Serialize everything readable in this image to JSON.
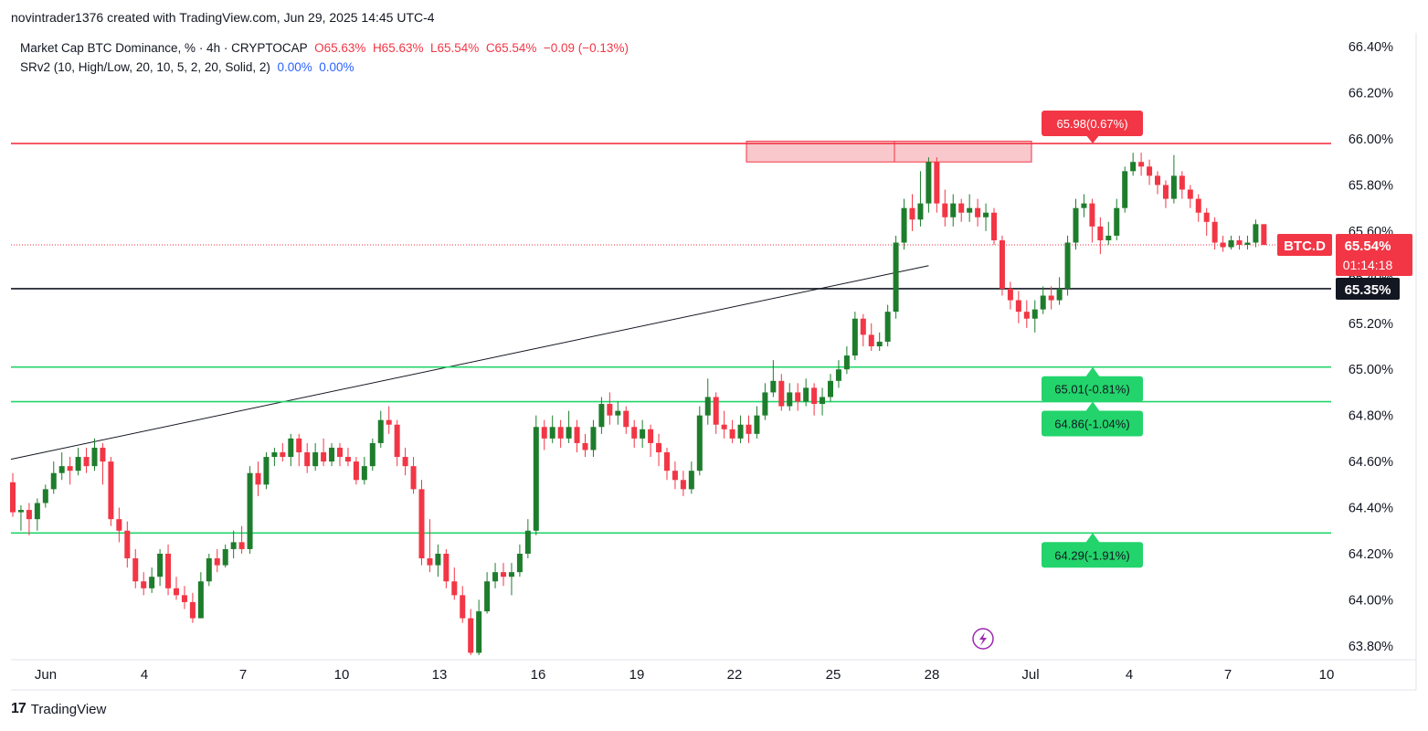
{
  "header": {
    "attribution": "novintrader1376 created with TradingView.com, Jun 29, 2025 14:45 UTC-4"
  },
  "legend": {
    "symbol": "Market Cap BTC Dominance, % · 4h · CRYPTOCAP",
    "open": "O65.63%",
    "high": "H65.63%",
    "low": "L65.54%",
    "close": "C65.54%",
    "change": "−0.09 (−0.13%)",
    "indicator": "SRv2 (10, High/Low, 20, 10, 5, 2, 20, Solid, 2)",
    "ind_val1": "0.00%",
    "ind_val2": "0.00%"
  },
  "footer": {
    "brand": "TradingView",
    "logo": "17"
  },
  "colors": {
    "up": "#089981",
    "down": "#f23645",
    "bull": "#1e7d2c",
    "bear": "#f23645",
    "support": "#22d46b",
    "resistance": "#f23645"
  },
  "chart_data": {
    "type": "candlestick",
    "symbol_tag": "BTC.D",
    "last_price": "65.54%",
    "countdown": "01:14:18",
    "crosshair_label": "65.35%",
    "ylim": [
      63.74,
      66.46
    ],
    "y_ticks": [
      "66.40%",
      "66.20%",
      "66.00%",
      "65.80%",
      "65.60%",
      "65.40%",
      "65.20%",
      "65.00%",
      "64.80%",
      "64.60%",
      "64.40%",
      "64.20%",
      "64.00%",
      "63.80%"
    ],
    "x_ticks": [
      "Jun",
      "4",
      "7",
      "10",
      "13",
      "16",
      "19",
      "22",
      "25",
      "28",
      "Jul",
      "4",
      "7",
      "10"
    ],
    "levels": [
      {
        "value": 65.98,
        "label": "65.98(0.67%)",
        "type": "resistance"
      },
      {
        "value": 65.01,
        "label": "65.01(-0.81%)",
        "type": "support"
      },
      {
        "value": 64.86,
        "label": "64.86(-1.04%)",
        "type": "support"
      },
      {
        "value": 64.29,
        "label": "64.29(-1.91%)",
        "type": "support"
      }
    ],
    "horizontal_line": 65.35,
    "resistance_zone": [
      65.9,
      65.99
    ],
    "trendline": [
      [
        0,
        64.61
      ],
      [
        112,
        65.45
      ]
    ],
    "candles": [
      [
        64.51,
        64.38,
        64.55,
        64.36
      ],
      [
        64.38,
        64.39,
        64.41,
        64.3
      ],
      [
        64.39,
        64.35,
        64.42,
        64.28
      ],
      [
        64.35,
        64.42,
        64.44,
        64.3
      ],
      [
        64.42,
        64.48,
        64.5,
        64.4
      ],
      [
        64.48,
        64.55,
        64.6,
        64.46
      ],
      [
        64.55,
        64.58,
        64.64,
        64.52
      ],
      [
        64.58,
        64.56,
        64.62,
        64.5
      ],
      [
        64.56,
        64.62,
        64.66,
        64.54
      ],
      [
        64.62,
        64.58,
        64.66,
        64.55
      ],
      [
        64.58,
        64.66,
        64.7,
        64.56
      ],
      [
        64.66,
        64.6,
        64.68,
        64.5
      ],
      [
        64.6,
        64.35,
        64.62,
        64.32
      ],
      [
        64.35,
        64.3,
        64.4,
        64.25
      ],
      [
        64.3,
        64.18,
        64.34,
        64.14
      ],
      [
        64.18,
        64.08,
        64.22,
        64.05
      ],
      [
        64.08,
        64.05,
        64.12,
        64.02
      ],
      [
        64.05,
        64.1,
        64.14,
        64.03
      ],
      [
        64.1,
        64.2,
        64.22,
        64.06
      ],
      [
        64.2,
        64.05,
        64.24,
        64.02
      ],
      [
        64.05,
        64.02,
        64.1,
        64.0
      ],
      [
        64.02,
        63.99,
        64.06,
        63.96
      ],
      [
        63.99,
        63.92,
        64.03,
        63.9
      ],
      [
        63.92,
        64.08,
        64.12,
        63.92
      ],
      [
        64.08,
        64.18,
        64.2,
        64.06
      ],
      [
        64.18,
        64.15,
        64.22,
        64.12
      ],
      [
        64.15,
        64.22,
        64.24,
        64.14
      ],
      [
        64.22,
        64.25,
        64.3,
        64.18
      ],
      [
        64.25,
        64.22,
        64.32,
        64.2
      ],
      [
        64.22,
        64.55,
        64.58,
        64.2
      ],
      [
        64.55,
        64.5,
        64.6,
        64.45
      ],
      [
        64.5,
        64.62,
        64.64,
        64.48
      ],
      [
        64.62,
        64.64,
        64.66,
        64.58
      ],
      [
        64.64,
        64.62,
        64.68,
        64.6
      ],
      [
        64.62,
        64.7,
        64.72,
        64.58
      ],
      [
        64.7,
        64.64,
        64.72,
        64.58
      ],
      [
        64.64,
        64.58,
        64.68,
        64.55
      ],
      [
        64.58,
        64.64,
        64.68,
        64.56
      ],
      [
        64.64,
        64.6,
        64.7,
        64.58
      ],
      [
        64.6,
        64.66,
        64.68,
        64.58
      ],
      [
        64.66,
        64.62,
        64.68,
        64.58
      ],
      [
        64.62,
        64.6,
        64.66,
        64.58
      ],
      [
        64.6,
        64.52,
        64.62,
        64.5
      ],
      [
        64.52,
        64.58,
        64.62,
        64.5
      ],
      [
        64.58,
        64.68,
        64.7,
        64.56
      ],
      [
        64.68,
        64.78,
        64.82,
        64.66
      ],
      [
        64.78,
        64.76,
        64.84,
        64.72
      ],
      [
        64.76,
        64.62,
        64.78,
        64.58
      ],
      [
        64.62,
        64.58,
        64.66,
        64.54
      ],
      [
        64.58,
        64.48,
        64.62,
        64.46
      ],
      [
        64.48,
        64.18,
        64.52,
        64.15
      ],
      [
        64.18,
        64.15,
        64.35,
        64.12
      ],
      [
        64.15,
        64.2,
        64.24,
        64.1
      ],
      [
        64.2,
        64.08,
        64.22,
        64.05
      ],
      [
        64.08,
        64.02,
        64.14,
        64.0
      ],
      [
        64.02,
        63.92,
        64.06,
        63.9
      ],
      [
        63.92,
        63.77,
        63.96,
        63.76
      ],
      [
        63.77,
        63.95,
        64.0,
        63.76
      ],
      [
        63.95,
        64.08,
        64.12,
        63.94
      ],
      [
        64.08,
        64.12,
        64.16,
        64.05
      ],
      [
        64.12,
        64.1,
        64.16,
        64.06
      ],
      [
        64.1,
        64.12,
        64.16,
        64.02
      ],
      [
        64.12,
        64.2,
        64.24,
        64.1
      ],
      [
        64.2,
        64.3,
        64.35,
        64.18
      ],
      [
        64.3,
        64.75,
        64.8,
        64.28
      ],
      [
        64.75,
        64.7,
        64.78,
        64.65
      ],
      [
        64.7,
        64.75,
        64.8,
        64.68
      ],
      [
        64.75,
        64.7,
        64.78,
        64.66
      ],
      [
        64.7,
        64.75,
        64.82,
        64.68
      ],
      [
        64.75,
        64.68,
        64.78,
        64.64
      ],
      [
        64.68,
        64.65,
        64.72,
        64.62
      ],
      [
        64.65,
        64.75,
        64.78,
        64.62
      ],
      [
        64.75,
        64.85,
        64.88,
        64.72
      ],
      [
        64.85,
        64.8,
        64.9,
        64.76
      ],
      [
        64.8,
        64.82,
        64.86,
        64.76
      ],
      [
        64.82,
        64.75,
        64.84,
        64.72
      ],
      [
        64.75,
        64.7,
        64.78,
        64.66
      ],
      [
        64.7,
        64.74,
        64.78,
        64.66
      ],
      [
        64.74,
        64.68,
        64.76,
        64.62
      ],
      [
        64.68,
        64.64,
        64.72,
        64.58
      ],
      [
        64.64,
        64.56,
        64.66,
        64.52
      ],
      [
        64.56,
        64.52,
        64.6,
        64.48
      ],
      [
        64.52,
        64.48,
        64.56,
        64.45
      ],
      [
        64.48,
        64.56,
        64.6,
        64.46
      ],
      [
        64.56,
        64.8,
        64.84,
        64.54
      ],
      [
        64.8,
        64.88,
        64.96,
        64.76
      ],
      [
        64.88,
        64.76,
        64.9,
        64.72
      ],
      [
        64.76,
        64.74,
        64.82,
        64.7
      ],
      [
        64.74,
        64.7,
        64.78,
        64.68
      ],
      [
        64.7,
        64.76,
        64.8,
        64.68
      ],
      [
        64.76,
        64.72,
        64.8,
        64.68
      ],
      [
        64.72,
        64.8,
        64.84,
        64.7
      ],
      [
        64.8,
        64.9,
        64.94,
        64.78
      ],
      [
        64.9,
        64.95,
        65.04,
        64.88
      ],
      [
        64.95,
        64.84,
        64.98,
        64.82
      ],
      [
        64.84,
        64.9,
        64.94,
        64.82
      ],
      [
        64.9,
        64.86,
        64.94,
        64.82
      ],
      [
        64.86,
        64.92,
        64.96,
        64.84
      ],
      [
        64.92,
        64.85,
        64.94,
        64.8
      ],
      [
        64.85,
        64.88,
        64.92,
        64.8
      ],
      [
        64.88,
        64.95,
        64.98,
        64.86
      ],
      [
        64.95,
        65.0,
        65.04,
        64.92
      ],
      [
        65.0,
        65.06,
        65.1,
        64.98
      ],
      [
        65.06,
        65.22,
        65.25,
        65.04
      ],
      [
        65.22,
        65.15,
        65.24,
        65.1
      ],
      [
        65.15,
        65.1,
        65.2,
        65.08
      ],
      [
        65.1,
        65.12,
        65.16,
        65.08
      ],
      [
        65.12,
        65.25,
        65.28,
        65.1
      ],
      [
        65.25,
        65.55,
        65.58,
        65.22
      ],
      [
        65.55,
        65.7,
        65.74,
        65.52
      ],
      [
        65.7,
        65.65,
        65.76,
        65.6
      ],
      [
        65.65,
        65.72,
        65.86,
        65.62
      ],
      [
        65.72,
        65.9,
        65.92,
        65.68
      ],
      [
        65.9,
        65.72,
        65.92,
        65.68
      ],
      [
        65.72,
        65.66,
        65.78,
        65.62
      ],
      [
        65.66,
        65.72,
        65.76,
        65.62
      ],
      [
        65.72,
        65.68,
        65.74,
        65.64
      ],
      [
        65.68,
        65.7,
        65.76,
        65.64
      ],
      [
        65.7,
        65.66,
        65.74,
        65.62
      ],
      [
        65.66,
        65.68,
        65.72,
        65.6
      ],
      [
        65.68,
        65.56,
        65.7,
        65.54
      ],
      [
        65.56,
        65.35,
        65.58,
        65.32
      ],
      [
        65.35,
        65.3,
        65.38,
        65.26
      ],
      [
        65.3,
        65.25,
        65.34,
        65.2
      ],
      [
        65.25,
        65.22,
        65.3,
        65.18
      ],
      [
        65.22,
        65.26,
        65.3,
        65.16
      ],
      [
        65.26,
        65.32,
        65.36,
        65.24
      ],
      [
        65.32,
        65.3,
        65.36,
        65.26
      ],
      [
        65.3,
        65.35,
        65.4,
        65.28
      ],
      [
        65.35,
        65.55,
        65.58,
        65.32
      ],
      [
        65.55,
        65.7,
        65.74,
        65.52
      ],
      [
        65.7,
        65.72,
        65.76,
        65.66
      ],
      [
        65.72,
        65.62,
        65.74,
        65.55
      ],
      [
        65.62,
        65.56,
        65.66,
        65.5
      ],
      [
        65.56,
        65.58,
        65.64,
        65.54
      ],
      [
        65.58,
        65.7,
        65.74,
        65.56
      ],
      [
        65.7,
        65.86,
        65.88,
        65.68
      ],
      [
        65.86,
        65.9,
        65.94,
        65.84
      ],
      [
        65.9,
        65.88,
        65.94,
        65.84
      ],
      [
        65.88,
        65.84,
        65.91,
        65.8
      ],
      [
        65.84,
        65.8,
        65.86,
        65.76
      ],
      [
        65.8,
        65.74,
        65.82,
        65.7
      ],
      [
        65.74,
        65.84,
        65.93,
        65.72
      ],
      [
        65.84,
        65.78,
        65.86,
        65.74
      ],
      [
        65.78,
        65.74,
        65.8,
        65.7
      ],
      [
        65.74,
        65.68,
        65.76,
        65.64
      ],
      [
        65.68,
        65.64,
        65.7,
        65.58
      ],
      [
        65.64,
        65.55,
        65.66,
        65.52
      ],
      [
        65.55,
        65.53,
        65.58,
        65.51
      ],
      [
        65.53,
        65.56,
        65.58,
        65.52
      ],
      [
        65.56,
        65.54,
        65.58,
        65.52
      ],
      [
        65.54,
        65.55,
        65.58,
        65.52
      ],
      [
        65.55,
        65.63,
        65.65,
        65.53
      ],
      [
        65.63,
        65.54,
        65.63,
        65.54
      ]
    ]
  }
}
